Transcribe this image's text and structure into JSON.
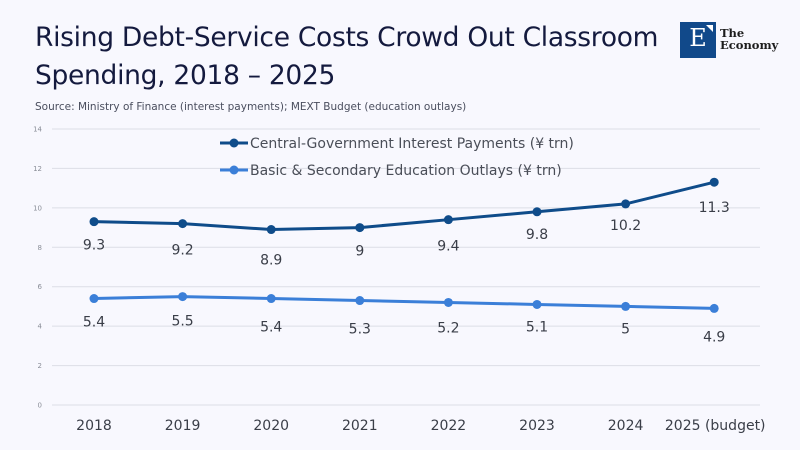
{
  "header": {
    "title": "Rising Debt-Service Costs Crowd Out Classroom Spending, 2018 – 2025",
    "source": "Source: Ministry of Finance (interest payments); MEXT Budget (education outlays)"
  },
  "logo": {
    "letter": "E",
    "line1": "The",
    "line2": "Economy",
    "color": "#11498a"
  },
  "chart_data": {
    "type": "line",
    "title": "Rising Debt-Service Costs Crowd Out Classroom Spending, 2018 – 2025",
    "xlabel": "",
    "ylabel": "",
    "categories": [
      "2018",
      "2019",
      "2020",
      "2021",
      "2022",
      "2023",
      "2024",
      "2025 (budget)"
    ],
    "ylim": [
      0,
      14
    ],
    "yticks": [
      0,
      2,
      4,
      6,
      8,
      10,
      12,
      14
    ],
    "grid": true,
    "legend_position": "top-center",
    "series": [
      {
        "name": "Central-Government Interest Payments (¥ trn)",
        "color": "#0f4c8a",
        "values": [
          9.3,
          9.2,
          8.9,
          9,
          9.4,
          9.8,
          10.2,
          11.3
        ],
        "labels": [
          "9.3",
          "9.2",
          "8.9",
          "9",
          "9.4",
          "9.8",
          "10.2",
          "11.3"
        ]
      },
      {
        "name": "Basic & Secondary Education Outlays (¥ trn)",
        "color": "#3b7fd8",
        "values": [
          5.4,
          5.5,
          5.4,
          5.3,
          5.2,
          5.1,
          5,
          4.9
        ],
        "labels": [
          "5.4",
          "5.5",
          "5.4",
          "5.3",
          "5.2",
          "5.1",
          "5",
          "4.9"
        ]
      }
    ]
  }
}
